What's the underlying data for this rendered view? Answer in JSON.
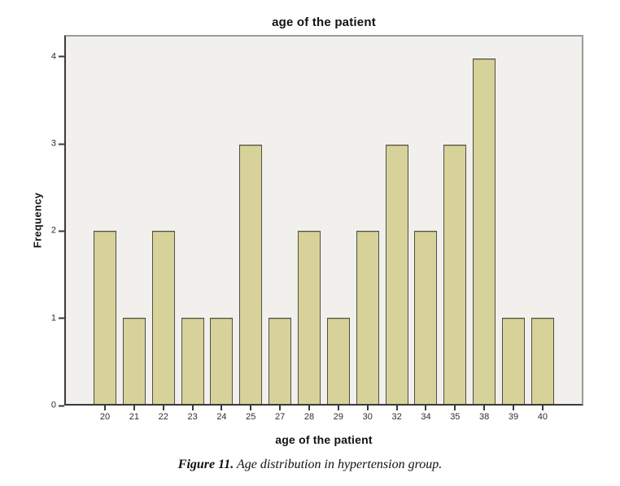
{
  "chart_data": {
    "type": "bar",
    "title": "age of the patient",
    "xlabel": "age of the patient",
    "ylabel": "Frequency",
    "categories": [
      "20",
      "21",
      "22",
      "23",
      "24",
      "25",
      "27",
      "28",
      "29",
      "30",
      "32",
      "34",
      "35",
      "38",
      "39",
      "40"
    ],
    "values": [
      2,
      1,
      2,
      1,
      1,
      3,
      1,
      2,
      1,
      2,
      3,
      2,
      3,
      4,
      1,
      1
    ],
    "yticks": [
      0,
      1,
      2,
      3,
      4
    ],
    "ylim": [
      0,
      4.25
    ],
    "grid": false,
    "legend": "none",
    "colors": {
      "bar_fill": "#d6d29a",
      "bar_border": "#514f43",
      "plot_background": "#f1f0ed",
      "axis_line": "#3a3a38",
      "frame_line": "#9a9a98"
    }
  },
  "caption": {
    "label": "Figure 11.",
    "text": " Age distribution in hypertension group."
  }
}
